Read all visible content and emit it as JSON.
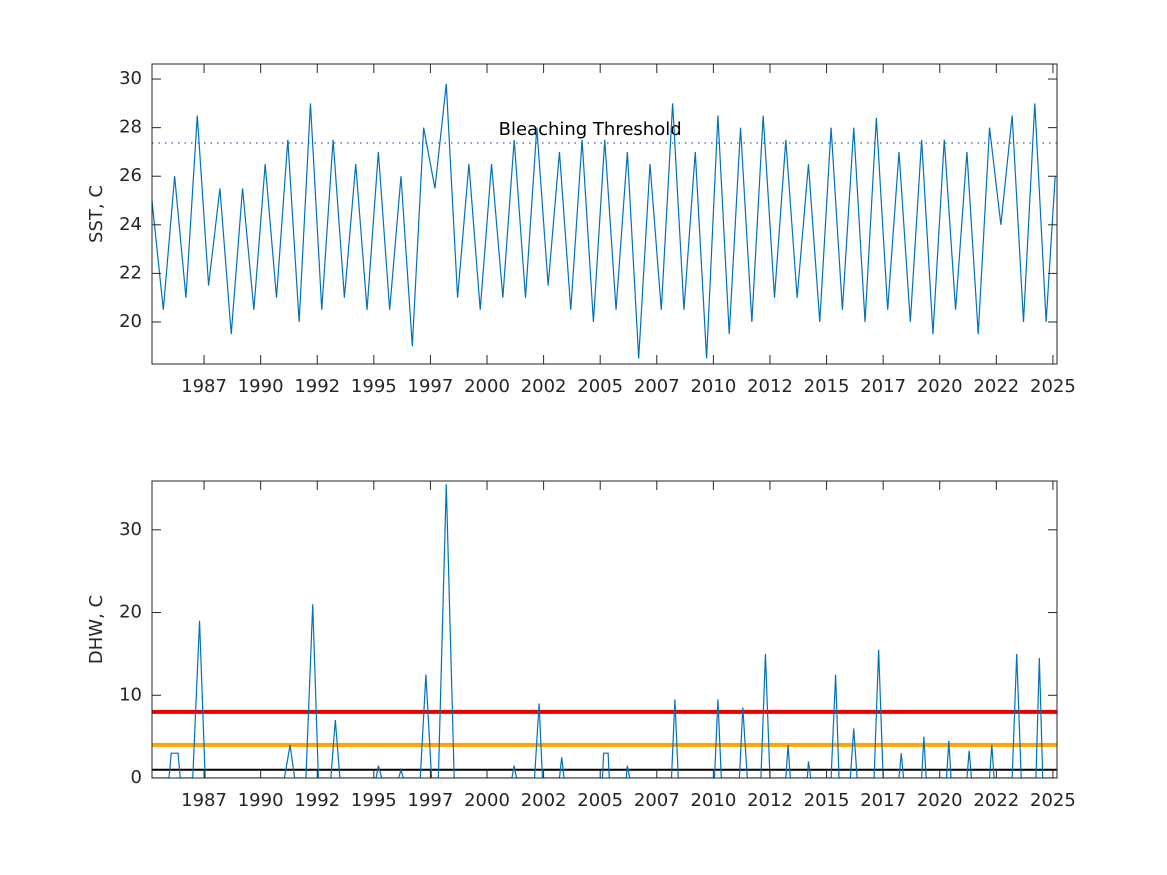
{
  "chart_data": [
    {
      "type": "line",
      "y_label": "SST, C",
      "annotation": "Bleaching Threshold",
      "threshold": 27.37,
      "xlim": [
        1985.2,
        2025.18
      ],
      "ylim": [
        18.27,
        30.62
      ],
      "xticks": [
        {
          "value": 1987.5,
          "label": "1987"
        },
        {
          "value": 1990,
          "label": "1990"
        },
        {
          "value": 1992.5,
          "label": "1992"
        },
        {
          "value": 1995,
          "label": "1995"
        },
        {
          "value": 1997.5,
          "label": "1997"
        },
        {
          "value": 2000,
          "label": "2000"
        },
        {
          "value": 2002.5,
          "label": "2002"
        },
        {
          "value": 2005,
          "label": "2005"
        },
        {
          "value": 2007.5,
          "label": "2007"
        },
        {
          "value": 2010,
          "label": "2010"
        },
        {
          "value": 2012.5,
          "label": "2012"
        },
        {
          "value": 2015,
          "label": "2015"
        },
        {
          "value": 2017.5,
          "label": "2017"
        },
        {
          "value": 2020,
          "label": "2020"
        },
        {
          "value": 2022.5,
          "label": "2022"
        },
        {
          "value": 2025,
          "label": "2025"
        }
      ],
      "yticks": [
        20,
        22,
        24,
        26,
        28,
        30
      ],
      "color": "#0072bd",
      "x": [
        1985.2,
        1985.7,
        1986.2,
        1986.7,
        1987.2,
        1987.7,
        1988.2,
        1988.7,
        1989.2,
        1989.7,
        1990.2,
        1990.7,
        1991.2,
        1991.7,
        1992.2,
        1992.7,
        1993.2,
        1993.7,
        1994.2,
        1994.7,
        1995.2,
        1995.7,
        1996.2,
        1996.7,
        1997.2,
        1997.7,
        1998.2,
        1998.7,
        1999.2,
        1999.7,
        2000.2,
        2000.7,
        2001.2,
        2001.7,
        2002.2,
        2002.7,
        2003.2,
        2003.7,
        2004.2,
        2004.7,
        2005.2,
        2005.7,
        2006.2,
        2006.7,
        2007.2,
        2007.7,
        2008.2,
        2008.7,
        2009.2,
        2009.7,
        2010.2,
        2010.7,
        2011.2,
        2011.7,
        2012.2,
        2012.7,
        2013.2,
        2013.7,
        2014.2,
        2014.7,
        2015.2,
        2015.7,
        2016.2,
        2016.7,
        2017.2,
        2017.7,
        2018.2,
        2018.7,
        2019.2,
        2019.7,
        2020.2,
        2020.7,
        2021.2,
        2021.7,
        2022.2,
        2022.7,
        2023.2,
        2023.7,
        2024.2,
        2024.7,
        2025.1
      ],
      "values": [
        25,
        20.5,
        26,
        21,
        28.5,
        21.5,
        25.5,
        19.5,
        25.5,
        20.5,
        26.5,
        21,
        27.5,
        20,
        29,
        20.5,
        27.5,
        21,
        26.5,
        20.5,
        27,
        20.5,
        26,
        19,
        28,
        25.5,
        29.8,
        21,
        26.5,
        20.5,
        26.5,
        21,
        27.5,
        21,
        28,
        21.5,
        27,
        20.5,
        27.5,
        20,
        27.5,
        20.5,
        27,
        18.5,
        26.5,
        20.5,
        29,
        20.5,
        27,
        18.5,
        28.5,
        19.5,
        28,
        20,
        28.5,
        21,
        27.5,
        21,
        26.5,
        20,
        28,
        20.5,
        28,
        20,
        28.4,
        20.5,
        27,
        20,
        27.5,
        19.5,
        27.5,
        20.5,
        27,
        19.5,
        28,
        24,
        28.5,
        20,
        29,
        20,
        26
      ]
    },
    {
      "type": "line",
      "y_label": "DHW, C",
      "xlim": [
        1985.2,
        2025.18
      ],
      "ylim": [
        0,
        35.9
      ],
      "xticks": [
        {
          "value": 1987.5,
          "label": "1987"
        },
        {
          "value": 1990,
          "label": "1990"
        },
        {
          "value": 1992.5,
          "label": "1992"
        },
        {
          "value": 1995,
          "label": "1995"
        },
        {
          "value": 1997.5,
          "label": "1997"
        },
        {
          "value": 2000,
          "label": "2000"
        },
        {
          "value": 2002.5,
          "label": "2002"
        },
        {
          "value": 2005,
          "label": "2005"
        },
        {
          "value": 2007.5,
          "label": "2007"
        },
        {
          "value": 2010,
          "label": "2010"
        },
        {
          "value": 2012.5,
          "label": "2012"
        },
        {
          "value": 2015,
          "label": "2015"
        },
        {
          "value": 2017.5,
          "label": "2017"
        },
        {
          "value": 2020,
          "label": "2020"
        },
        {
          "value": 2022.5,
          "label": "2022"
        },
        {
          "value": 2025,
          "label": "2025"
        }
      ],
      "yticks": [
        0,
        10,
        20,
        30
      ],
      "color": "#0072bd",
      "reference_lines": [
        {
          "value": 8,
          "color": "#e60000"
        },
        {
          "value": 4,
          "color": "#ffa500"
        },
        {
          "value": 1,
          "color": "#000000"
        }
      ],
      "x": [
        1985.2,
        1985.95,
        1986.05,
        1986.35,
        1986.45,
        1987.0,
        1987.3,
        1987.55,
        1991.05,
        1991.3,
        1991.5,
        1992.0,
        1992.3,
        1992.55,
        1993.1,
        1993.3,
        1993.5,
        1995.1,
        1995.2,
        1995.35,
        1996.1,
        1996.2,
        1996.3,
        1997.05,
        1997.3,
        1997.55,
        1997.85,
        1998.2,
        1998.55,
        2001.1,
        2001.2,
        2001.3,
        2002.1,
        2002.3,
        2002.45,
        2003.2,
        2003.3,
        2003.4,
        2005.1,
        2005.15,
        2005.35,
        2005.4,
        2006.15,
        2006.2,
        2006.3,
        2008.15,
        2008.3,
        2008.45,
        2010.05,
        2010.2,
        2010.35,
        2011.15,
        2011.3,
        2011.5,
        2012.1,
        2012.3,
        2012.5,
        2013.2,
        2013.3,
        2013.4,
        2014.15,
        2014.2,
        2014.3,
        2015.2,
        2015.4,
        2015.55,
        2016.05,
        2016.2,
        2016.35,
        2017.1,
        2017.3,
        2017.5,
        2018.2,
        2018.3,
        2018.4,
        2019.2,
        2019.3,
        2019.4,
        2020.3,
        2020.4,
        2020.5,
        2021.2,
        2021.3,
        2021.4,
        2022.2,
        2022.3,
        2022.4,
        2023.2,
        2023.4,
        2023.6,
        2024.25,
        2024.4,
        2024.55,
        2025.15
      ],
      "values": [
        0,
        0,
        3,
        3,
        0,
        0,
        19,
        0,
        0,
        4,
        0,
        0,
        21,
        0,
        0,
        7,
        0,
        0,
        1.5,
        0,
        0,
        1,
        0,
        0,
        12.5,
        0,
        0,
        35.5,
        0,
        0,
        1.5,
        0,
        0,
        9,
        0,
        0,
        2.5,
        0,
        0,
        3,
        3,
        0,
        0,
        1.5,
        0,
        0,
        9.5,
        0,
        0,
        9.5,
        0,
        0,
        8.5,
        0,
        0,
        15,
        0,
        0,
        4,
        0,
        0,
        2,
        0,
        0,
        12.5,
        0,
        0,
        6,
        0,
        0,
        15.5,
        0,
        0,
        3,
        0,
        0,
        5,
        0,
        0,
        4.5,
        0,
        0,
        3.3,
        0,
        0,
        4,
        0,
        0,
        15,
        0,
        0,
        14.5,
        0,
        0
      ]
    }
  ]
}
